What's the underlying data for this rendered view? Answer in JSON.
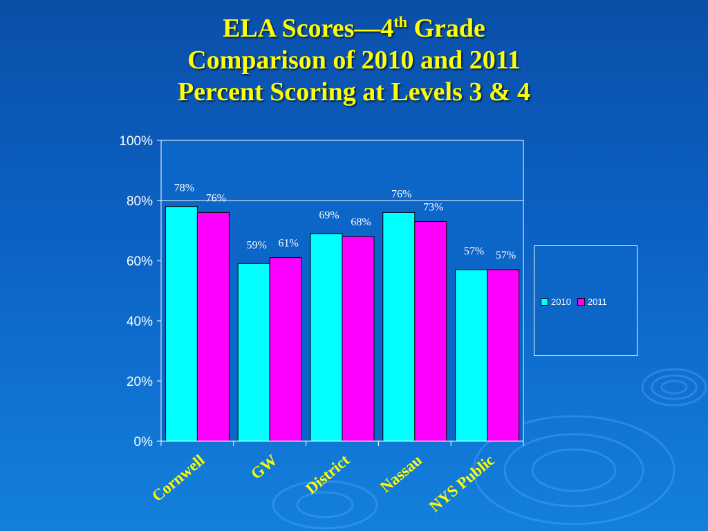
{
  "title": {
    "line1_main": "ELA Scores—4",
    "line1_sup": "th",
    "line1_end": " Grade",
    "line2": "Comparison of 2010 and 2011",
    "line3": "Percent Scoring at Levels 3 & 4"
  },
  "colors": {
    "series_2010": "#00ffff",
    "series_2011": "#ff00ff",
    "title": "#ffff00",
    "background": "#0c62c4"
  },
  "chart_data": {
    "type": "bar",
    "title": "ELA Scores—4th Grade Comparison of 2010 and 2011 Percent Scoring at Levels 3 & 4",
    "categories": [
      "Cornwell",
      "GW",
      "District",
      "Nassau",
      "NYS Public"
    ],
    "series": [
      {
        "name": "2010",
        "values": [
          78,
          59,
          69,
          76,
          57
        ],
        "labels": [
          "78%",
          "59%",
          "69%",
          "76%",
          "57%"
        ]
      },
      {
        "name": "2011",
        "values": [
          76,
          61,
          68,
          73,
          57
        ],
        "labels": [
          "76%",
          "61%",
          "68%",
          "73%",
          "57%"
        ]
      }
    ],
    "yticks": [
      "0%",
      "20%",
      "40%",
      "60%",
      "80%",
      "100%"
    ],
    "ylim": [
      0,
      100
    ],
    "xlabel": "",
    "ylabel": "",
    "grid": "horizontal at 80%",
    "legend_position": "right"
  }
}
